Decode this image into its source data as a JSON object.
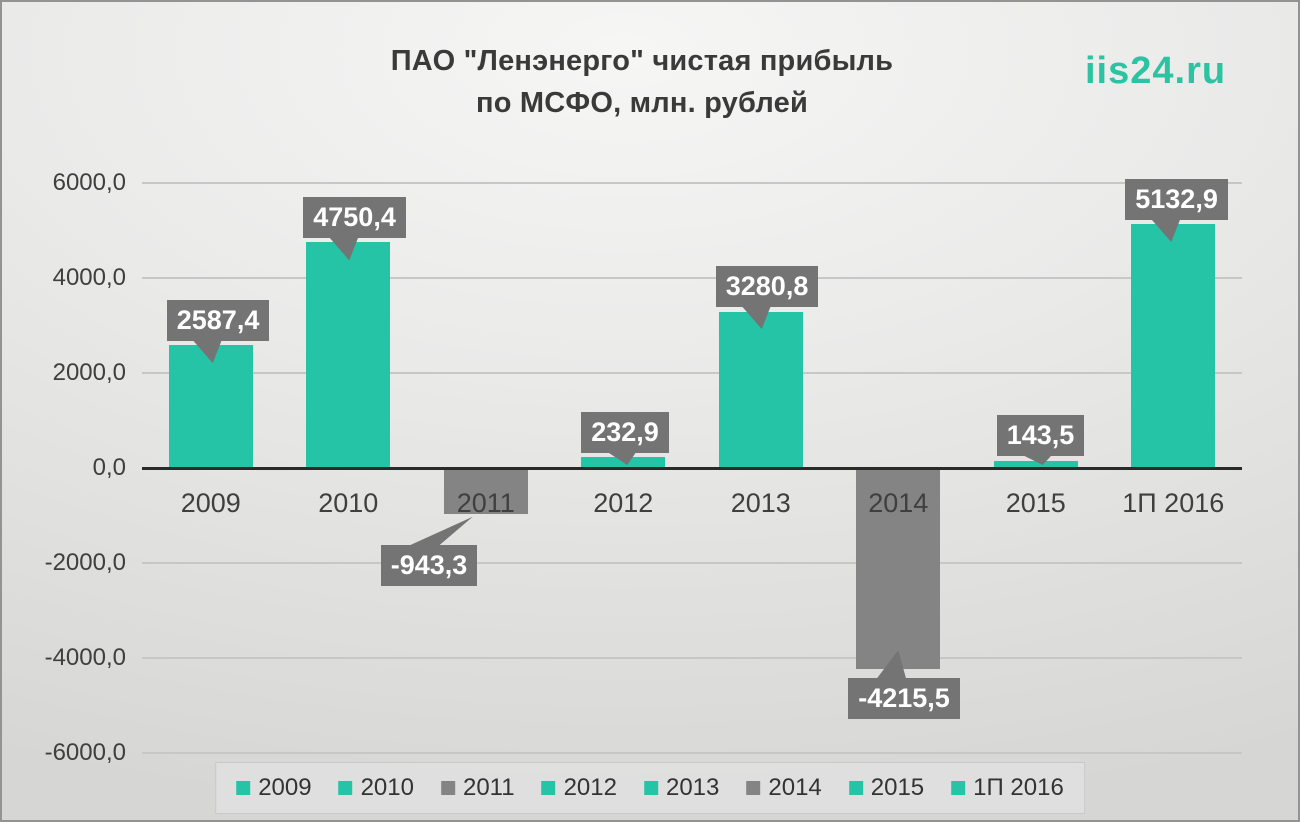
{
  "header": {
    "title_line1": "ПАО \"Ленэнерго\" чистая прибыль",
    "title_line2": "по МСФО, млн. рублей",
    "watermark": "iis24.ru"
  },
  "chart_data": {
    "type": "bar",
    "title": "ПАО \"Ленэнерго\" чистая прибыль по МСФО, млн. рублей",
    "unit": "млн. рублей",
    "categories": [
      "2009",
      "2010",
      "2011",
      "2012",
      "2013",
      "2014",
      "2015",
      "1П 2016"
    ],
    "values": [
      2587.4,
      4750.4,
      -943.3,
      232.9,
      3280.8,
      -4215.5,
      143.5,
      5132.9
    ],
    "value_labels": [
      "2587,4",
      "4750,4",
      "-943,3",
      "232,9",
      "3280,8",
      "-4215,5",
      "143,5",
      "5132,9"
    ],
    "ylim": [
      -6000,
      6000
    ],
    "ytick_values": [
      6000,
      4000,
      2000,
      0,
      -2000,
      -4000,
      -6000
    ],
    "ytick_labels": [
      "6000,0",
      "4000,0",
      "2000,0",
      "0,0",
      "-2000,0",
      "-4000,0",
      "-6000,0"
    ],
    "grid": true,
    "legend_position": "bottom",
    "colors": {
      "positive": "#26c4a6",
      "negative": "#848484",
      "callout_bg": "#747474",
      "callout_text": "#ffffff",
      "axis_text": "#3f3f3f",
      "gridline": "#c7c7c7",
      "zero_line": "#2a2a2a",
      "watermark": "#2cc3a3"
    },
    "label_layout": [
      {
        "dx": -2,
        "gap": 4
      },
      {
        "dx": -3,
        "gap": 4
      },
      {
        "dx": -63,
        "gap": 31,
        "tail": "up",
        "tail_dx": 92
      },
      {
        "dx": 0,
        "gap": 4
      },
      {
        "dx": -3,
        "gap": 5
      },
      {
        "dx": -8,
        "gap": 9,
        "tail": "up",
        "tail_dx": 50
      },
      {
        "dx": 3,
        "gap": 5
      },
      {
        "dx": -6,
        "gap": 4
      }
    ]
  }
}
